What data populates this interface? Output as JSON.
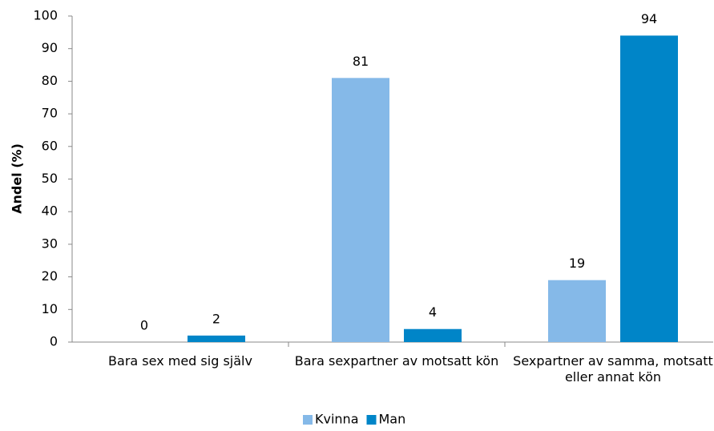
{
  "chart_data": {
    "type": "bar",
    "ylabel": "Andel (%)",
    "categories": [
      "Bara sex med sig själv",
      "Bara sexpartner av motsatt kön",
      "Sexpartner av samma, motsatt eller annat kön"
    ],
    "series": [
      {
        "name": "Kvinna",
        "color": "#85b9e8",
        "values": [
          0,
          81,
          19
        ]
      },
      {
        "name": "Man",
        "color": "#0085c8",
        "values": [
          2,
          4,
          94
        ]
      }
    ],
    "ylim": [
      0,
      100
    ],
    "yticks": [
      0,
      10,
      20,
      30,
      40,
      50,
      60,
      70,
      80,
      90,
      100
    ],
    "grid": false,
    "legend": "bottom"
  }
}
